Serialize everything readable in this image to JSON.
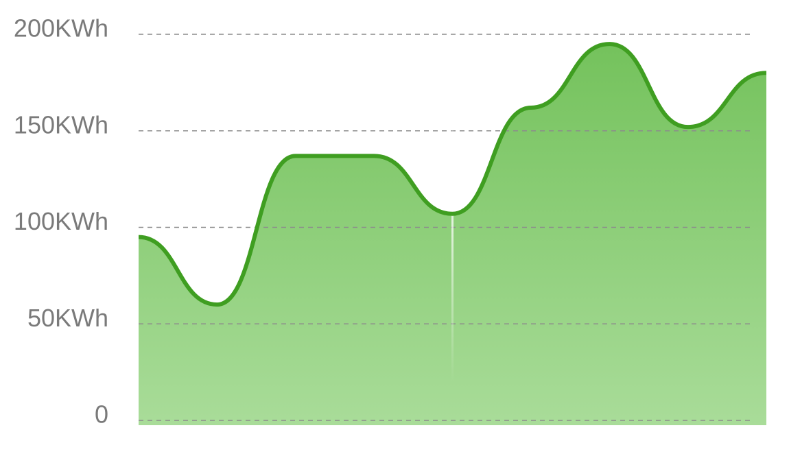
{
  "chart_data": {
    "type": "area",
    "title": "",
    "xlabel": "",
    "ylabel": "",
    "ylim": [
      0,
      200
    ],
    "yticks": [
      0,
      50,
      100,
      150,
      200
    ],
    "ytick_labels": [
      "0",
      "50KWh",
      "100KWh",
      "150KWh",
      "200KWh"
    ],
    "grid": true,
    "legend": "none",
    "x": [
      0,
      1,
      2,
      3,
      4,
      5,
      6,
      7,
      8
    ],
    "series": [
      {
        "values": [
          95,
          60,
          137,
          137,
          107,
          162,
          195,
          152,
          180
        ]
      }
    ],
    "colors": {
      "line": "#3f9e21",
      "fill_top": "#74c25c",
      "fill_bottom": "#a9dc99",
      "grid": "#8c8c8c",
      "tick_text": "#7a7a7a",
      "marker": "#ffffff"
    }
  }
}
